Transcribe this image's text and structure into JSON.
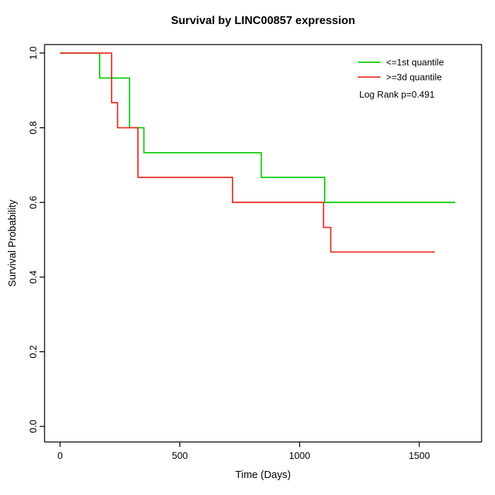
{
  "title": "Survival by LINC00857 expression",
  "chart_data": {
    "type": "line",
    "subtype": "kaplan-meier-step",
    "title": "Survival by LINC00857 expression",
    "xlabel": "Time (Days)",
    "ylabel": "Survival Probability",
    "xlim": [
      0,
      1750
    ],
    "ylim": [
      0.0,
      1.0
    ],
    "grid": false,
    "legend_position": "top-right-inside",
    "x_ticks": [
      0,
      500,
      1000,
      1500
    ],
    "x_tick_labels": [
      "0",
      "500",
      "1000",
      "1500"
    ],
    "y_ticks": [
      0.0,
      0.2,
      0.4,
      0.6,
      0.8,
      1.0
    ],
    "y_tick_labels": [
      "0.0",
      "0.2",
      "0.4",
      "0.6",
      "0.8",
      "1.0"
    ],
    "annotation": "Log Rank p=0.491",
    "series": [
      {
        "name": "<=1st quantile",
        "color": "#00CC00",
        "steps": [
          [
            0,
            1.0
          ],
          [
            165,
            0.933
          ],
          [
            290,
            0.8
          ],
          [
            350,
            0.733
          ],
          [
            840,
            0.667
          ],
          [
            1105,
            0.6
          ],
          [
            1650,
            0.6
          ]
        ]
      },
      {
        "name": ">=3d quantile",
        "color": "#E8291C",
        "steps": [
          [
            0,
            1.0
          ],
          [
            215,
            0.867
          ],
          [
            240,
            0.8
          ],
          [
            325,
            0.667
          ],
          [
            720,
            0.6
          ],
          [
            1100,
            0.533
          ],
          [
            1130,
            0.467
          ],
          [
            1565,
            0.467
          ]
        ]
      }
    ]
  },
  "colors": {
    "axis": "#000000",
    "background": "#FFFFFF"
  }
}
